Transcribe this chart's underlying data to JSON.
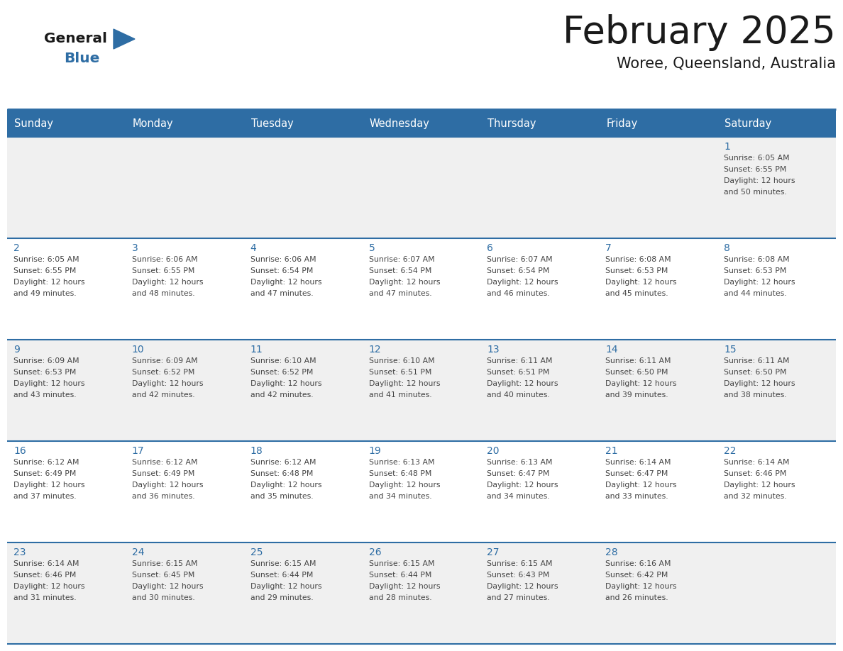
{
  "title": "February 2025",
  "subtitle": "Woree, Queensland, Australia",
  "header_bg": "#2E6DA4",
  "header_text": "#FFFFFF",
  "cell_bg_even": "#F0F0F0",
  "cell_bg_odd": "#FFFFFF",
  "day_number_color": "#2E6DA4",
  "cell_text_color": "#444444",
  "grid_line_color": "#2E6DA4",
  "days_of_week": [
    "Sunday",
    "Monday",
    "Tuesday",
    "Wednesday",
    "Thursday",
    "Friday",
    "Saturday"
  ],
  "weeks": [
    [
      {
        "num": "",
        "lines": []
      },
      {
        "num": "",
        "lines": []
      },
      {
        "num": "",
        "lines": []
      },
      {
        "num": "",
        "lines": []
      },
      {
        "num": "",
        "lines": []
      },
      {
        "num": "",
        "lines": []
      },
      {
        "num": "1",
        "lines": [
          "Sunrise: 6:05 AM",
          "Sunset: 6:55 PM",
          "Daylight: 12 hours",
          "and 50 minutes."
        ]
      }
    ],
    [
      {
        "num": "2",
        "lines": [
          "Sunrise: 6:05 AM",
          "Sunset: 6:55 PM",
          "Daylight: 12 hours",
          "and 49 minutes."
        ]
      },
      {
        "num": "3",
        "lines": [
          "Sunrise: 6:06 AM",
          "Sunset: 6:55 PM",
          "Daylight: 12 hours",
          "and 48 minutes."
        ]
      },
      {
        "num": "4",
        "lines": [
          "Sunrise: 6:06 AM",
          "Sunset: 6:54 PM",
          "Daylight: 12 hours",
          "and 47 minutes."
        ]
      },
      {
        "num": "5",
        "lines": [
          "Sunrise: 6:07 AM",
          "Sunset: 6:54 PM",
          "Daylight: 12 hours",
          "and 47 minutes."
        ]
      },
      {
        "num": "6",
        "lines": [
          "Sunrise: 6:07 AM",
          "Sunset: 6:54 PM",
          "Daylight: 12 hours",
          "and 46 minutes."
        ]
      },
      {
        "num": "7",
        "lines": [
          "Sunrise: 6:08 AM",
          "Sunset: 6:53 PM",
          "Daylight: 12 hours",
          "and 45 minutes."
        ]
      },
      {
        "num": "8",
        "lines": [
          "Sunrise: 6:08 AM",
          "Sunset: 6:53 PM",
          "Daylight: 12 hours",
          "and 44 minutes."
        ]
      }
    ],
    [
      {
        "num": "9",
        "lines": [
          "Sunrise: 6:09 AM",
          "Sunset: 6:53 PM",
          "Daylight: 12 hours",
          "and 43 minutes."
        ]
      },
      {
        "num": "10",
        "lines": [
          "Sunrise: 6:09 AM",
          "Sunset: 6:52 PM",
          "Daylight: 12 hours",
          "and 42 minutes."
        ]
      },
      {
        "num": "11",
        "lines": [
          "Sunrise: 6:10 AM",
          "Sunset: 6:52 PM",
          "Daylight: 12 hours",
          "and 42 minutes."
        ]
      },
      {
        "num": "12",
        "lines": [
          "Sunrise: 6:10 AM",
          "Sunset: 6:51 PM",
          "Daylight: 12 hours",
          "and 41 minutes."
        ]
      },
      {
        "num": "13",
        "lines": [
          "Sunrise: 6:11 AM",
          "Sunset: 6:51 PM",
          "Daylight: 12 hours",
          "and 40 minutes."
        ]
      },
      {
        "num": "14",
        "lines": [
          "Sunrise: 6:11 AM",
          "Sunset: 6:50 PM",
          "Daylight: 12 hours",
          "and 39 minutes."
        ]
      },
      {
        "num": "15",
        "lines": [
          "Sunrise: 6:11 AM",
          "Sunset: 6:50 PM",
          "Daylight: 12 hours",
          "and 38 minutes."
        ]
      }
    ],
    [
      {
        "num": "16",
        "lines": [
          "Sunrise: 6:12 AM",
          "Sunset: 6:49 PM",
          "Daylight: 12 hours",
          "and 37 minutes."
        ]
      },
      {
        "num": "17",
        "lines": [
          "Sunrise: 6:12 AM",
          "Sunset: 6:49 PM",
          "Daylight: 12 hours",
          "and 36 minutes."
        ]
      },
      {
        "num": "18",
        "lines": [
          "Sunrise: 6:12 AM",
          "Sunset: 6:48 PM",
          "Daylight: 12 hours",
          "and 35 minutes."
        ]
      },
      {
        "num": "19",
        "lines": [
          "Sunrise: 6:13 AM",
          "Sunset: 6:48 PM",
          "Daylight: 12 hours",
          "and 34 minutes."
        ]
      },
      {
        "num": "20",
        "lines": [
          "Sunrise: 6:13 AM",
          "Sunset: 6:47 PM",
          "Daylight: 12 hours",
          "and 34 minutes."
        ]
      },
      {
        "num": "21",
        "lines": [
          "Sunrise: 6:14 AM",
          "Sunset: 6:47 PM",
          "Daylight: 12 hours",
          "and 33 minutes."
        ]
      },
      {
        "num": "22",
        "lines": [
          "Sunrise: 6:14 AM",
          "Sunset: 6:46 PM",
          "Daylight: 12 hours",
          "and 32 minutes."
        ]
      }
    ],
    [
      {
        "num": "23",
        "lines": [
          "Sunrise: 6:14 AM",
          "Sunset: 6:46 PM",
          "Daylight: 12 hours",
          "and 31 minutes."
        ]
      },
      {
        "num": "24",
        "lines": [
          "Sunrise: 6:15 AM",
          "Sunset: 6:45 PM",
          "Daylight: 12 hours",
          "and 30 minutes."
        ]
      },
      {
        "num": "25",
        "lines": [
          "Sunrise: 6:15 AM",
          "Sunset: 6:44 PM",
          "Daylight: 12 hours",
          "and 29 minutes."
        ]
      },
      {
        "num": "26",
        "lines": [
          "Sunrise: 6:15 AM",
          "Sunset: 6:44 PM",
          "Daylight: 12 hours",
          "and 28 minutes."
        ]
      },
      {
        "num": "27",
        "lines": [
          "Sunrise: 6:15 AM",
          "Sunset: 6:43 PM",
          "Daylight: 12 hours",
          "and 27 minutes."
        ]
      },
      {
        "num": "28",
        "lines": [
          "Sunrise: 6:16 AM",
          "Sunset: 6:42 PM",
          "Daylight: 12 hours",
          "and 26 minutes."
        ]
      },
      {
        "num": "",
        "lines": []
      }
    ]
  ]
}
